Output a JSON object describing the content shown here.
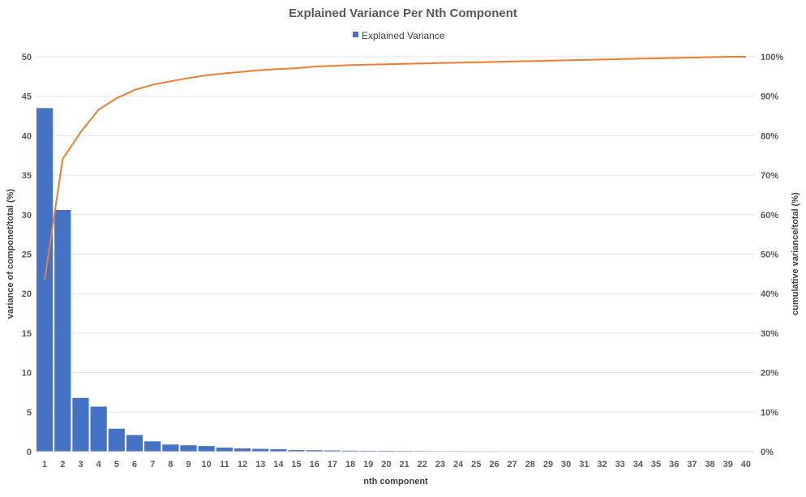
{
  "chart_data": {
    "type": "bar",
    "title": "Explained Variance Per Nth Component",
    "legend": {
      "entries": [
        "Explained Variance"
      ],
      "placement": "top-center"
    },
    "xlabel": "nth component",
    "ylabel": "variance of componet/total (%)",
    "y2label": "cumulative variance/total  (%)",
    "ylim": [
      0,
      50
    ],
    "y2lim": [
      0,
      100
    ],
    "yticks": [
      "0",
      "5",
      "10",
      "15",
      "20",
      "25",
      "30",
      "35",
      "40",
      "45",
      "50"
    ],
    "y2ticks": [
      "0%",
      "10%",
      "20%",
      "30%",
      "40%",
      "50%",
      "60%",
      "70%",
      "80%",
      "90%",
      "100%"
    ],
    "categories": [
      "1",
      "2",
      "3",
      "4",
      "5",
      "6",
      "7",
      "8",
      "9",
      "10",
      "11",
      "12",
      "13",
      "14",
      "15",
      "16",
      "17",
      "18",
      "19",
      "20",
      "21",
      "22",
      "23",
      "24",
      "25",
      "26",
      "27",
      "28",
      "29",
      "30",
      "31",
      "32",
      "33",
      "34",
      "35",
      "36",
      "37",
      "38",
      "39",
      "40"
    ],
    "series": [
      {
        "name": "Explained Variance",
        "type": "bar",
        "axis": "left",
        "color": "#4472C4",
        "values": [
          43.5,
          30.6,
          6.8,
          5.7,
          2.9,
          2.1,
          1.3,
          0.9,
          0.8,
          0.7,
          0.5,
          0.4,
          0.35,
          0.3,
          0.2,
          0.18,
          0.15,
          0.12,
          0.1,
          0.1,
          0.09,
          0.08,
          0.07,
          0.07,
          0.06,
          0.06,
          0.05,
          0.05,
          0.05,
          0.04,
          0.04,
          0.04,
          0.03,
          0.03,
          0.03,
          0.03,
          0.02,
          0.02,
          0.02,
          0.02
        ]
      },
      {
        "type": "line",
        "axis": "right",
        "color": "#ED7D31",
        "values": [
          43.5,
          74.1,
          80.9,
          86.6,
          89.5,
          91.6,
          92.9,
          93.8,
          94.6,
          95.3,
          95.8,
          96.2,
          96.6,
          96.9,
          97.1,
          97.5,
          97.7,
          97.9,
          98.0,
          98.1,
          98.2,
          98.3,
          98.4,
          98.5,
          98.6,
          98.7,
          98.8,
          98.9,
          99.0,
          99.1,
          99.2,
          99.3,
          99.4,
          99.5,
          99.6,
          99.7,
          99.8,
          99.9,
          100.0,
          100.0
        ]
      }
    ],
    "grid": true
  }
}
